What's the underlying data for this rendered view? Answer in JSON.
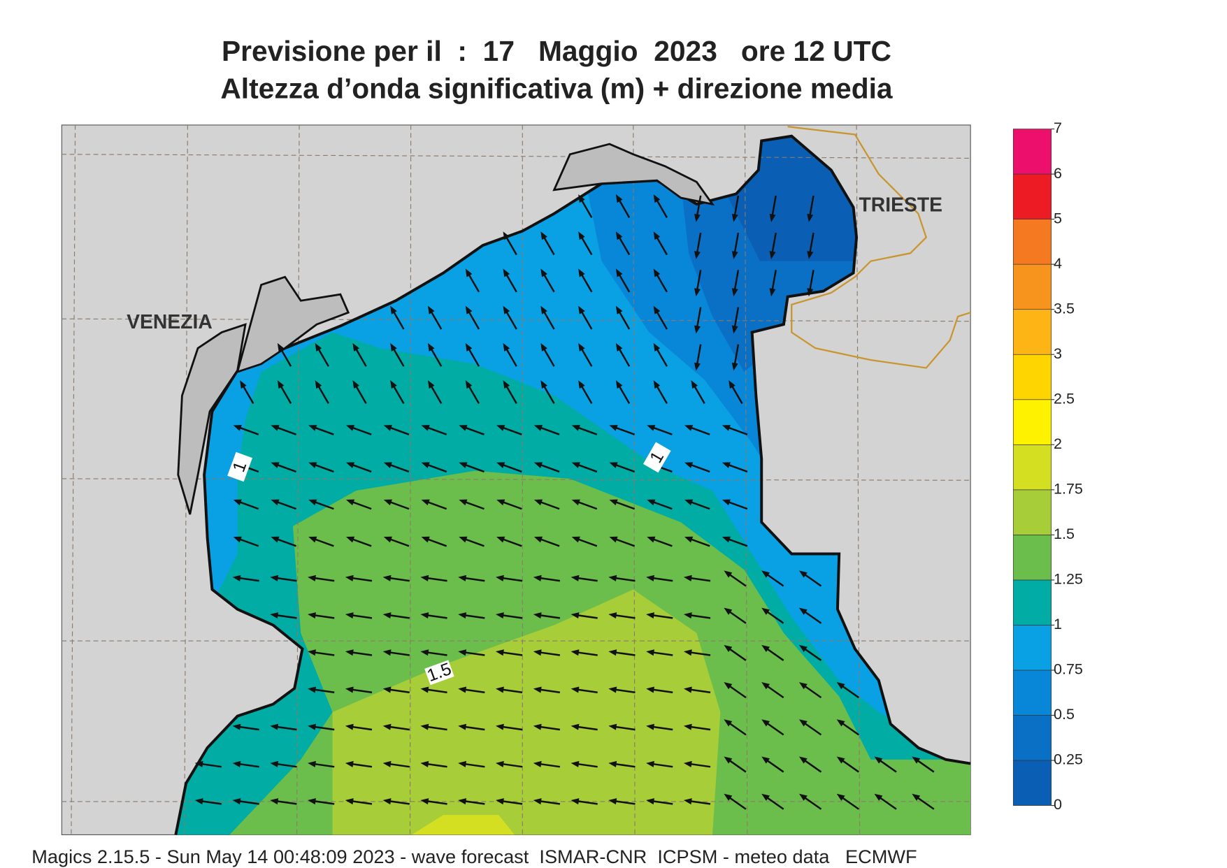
{
  "header": {
    "title": "Previsione per il  :  17   Maggio  2023   ore 12 UTC",
    "subtitle": "Altezza d’onda significativa (m) + direzione media"
  },
  "map": {
    "labels": [
      "VENEZIA",
      "TRIESTE"
    ],
    "contour_labels": [
      1,
      1,
      1.5
    ]
  },
  "colorbar": {
    "levels": [
      0,
      0.25,
      0.5,
      0.75,
      1,
      1.25,
      1.5,
      1.75,
      2,
      2.5,
      3,
      3.5,
      4,
      5,
      6,
      7
    ],
    "colors": [
      "#0a5fb4",
      "#0a70c6",
      "#0886d8",
      "#0aa0e4",
      "#00aca4",
      "#6cbe4c",
      "#a7cd38",
      "#d5df22",
      "#fff200",
      "#ffd500",
      "#fdb515",
      "#f7941d",
      "#f47920",
      "#ed1c24",
      "#ec0f6b"
    ]
  },
  "footer": "Magics 2.15.5 - Sun May 14 00:48:09 2023 - wave forecast  ISMAR-CNR  ICPSM - meteo data   ECMWF"
}
